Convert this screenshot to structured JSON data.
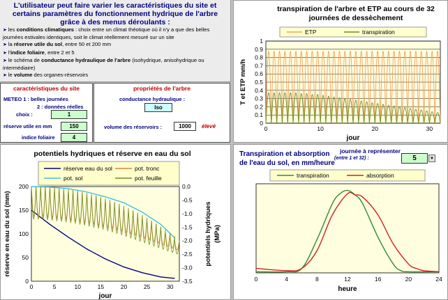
{
  "intro": {
    "title": "L'utilisateur peut faire varier les caractéristiques du site et certains  paramètres du fonctionnement hydrique de l'arbre grâce à des menus déroulants :",
    "items": [
      [
        "les ",
        "conditions climatiques",
        " : choix entre un climat théotique où il n'y a que des belles journées estivales identiques, soit le climat réellement mesuré sur un site"
      ],
      [
        "la ",
        "réserve utile du sol",
        ", entre 50 et 200 mm"
      ],
      [
        "l'",
        "indice foliaire",
        ", entre 2 et 5"
      ],
      [
        "le schéma de ",
        "conductance hydraulique de l'arbre",
        " (isohydrique, anisohydrique ou intermédiaire)"
      ],
      [
        " le ",
        "volume",
        " des organes-réservoirs"
      ]
    ]
  },
  "site": {
    "title": "caractéristiques du site",
    "meteo_line1": "METEO  1 : belles journées",
    "meteo_line2": "2 : données réelles",
    "choix_label": "choix :",
    "choix_value": "1",
    "reserve_label": "réserve utile en mm",
    "reserve_value": "150",
    "indice_label": "indice foliaire",
    "indice_value": "4"
  },
  "tree": {
    "title": "propriétés de l'arbre",
    "conductance_label": "conductance hydraulique :",
    "conductance_value": "Iso",
    "volume_label": "volume des réservoirs :",
    "volume_value": "1000",
    "volume_note": "élevé"
  },
  "chart_data": [
    {
      "type": "line",
      "title": "transpiration de l'arbre et ETP au cours de 32 journées de dessèchement",
      "xlabel": "jour",
      "ylabel": "T et ETP mm/h",
      "xlim": [
        0,
        32
      ],
      "ylim": [
        0,
        1
      ],
      "xticks": [
        0,
        10,
        20,
        30
      ],
      "yticks": [
        0,
        0.1,
        0.2,
        0.3,
        0.4,
        0.5,
        0.6,
        0.7,
        0.8,
        0.9,
        1
      ],
      "ytick_labels": [
        "0",
        "0.1",
        "0.2",
        "0.3",
        "0.4",
        "0.5",
        "0.6",
        "0.7",
        "0.8",
        "0.9",
        "1"
      ],
      "legend_position": "top",
      "series": [
        {
          "name": "ETP",
          "color": "#f0a060",
          "daily_peak": [
            0.88,
            0.88,
            0.88,
            0.88,
            0.88,
            0.88,
            0.88,
            0.88,
            0.88,
            0.88,
            0.88,
            0.88,
            0.88,
            0.88,
            0.88,
            0.88,
            0.88,
            0.88,
            0.88,
            0.88,
            0.88,
            0.88,
            0.88,
            0.88,
            0.88,
            0.88,
            0.88,
            0.88,
            0.88,
            0.88,
            0.88,
            0.88
          ]
        },
        {
          "name": "transpiration",
          "color": "#6b8e23",
          "daily_peak": [
            0.37,
            0.37,
            0.37,
            0.37,
            0.37,
            0.37,
            0.36,
            0.36,
            0.35,
            0.35,
            0.34,
            0.33,
            0.32,
            0.31,
            0.3,
            0.29,
            0.28,
            0.27,
            0.26,
            0.25,
            0.24,
            0.23,
            0.22,
            0.21,
            0.2,
            0.19,
            0.18,
            0.17,
            0.16,
            0.15,
            0.14,
            0.13
          ]
        }
      ]
    },
    {
      "type": "line",
      "title": "potentiels hydriques et réserve en eau du sol",
      "xlabel": "jour",
      "ylabel": "réserve en eau du sol (mm)",
      "y2label": "potentiels hydriques (MPa)",
      "xlim": [
        0,
        32
      ],
      "ylim": [
        0,
        200
      ],
      "y2lim": [
        -3.5,
        0
      ],
      "xticks": [
        0,
        5,
        10,
        15,
        20,
        25,
        30
      ],
      "yticks": [
        0,
        50,
        100,
        150,
        200
      ],
      "y2ticks": [
        0,
        -0.5,
        -1,
        -1.5,
        -2,
        -2.5,
        -3,
        -3.5
      ],
      "y2tick_labels": [
        "0.0",
        "-0.5",
        "-1.0",
        "-1.5",
        "-2.0",
        "-2.5",
        "-3.0",
        "-3.5"
      ],
      "legend_position": "top",
      "series": [
        {
          "name": "réserve eau du sol",
          "color": "#000080",
          "axis": "left",
          "x": [
            0,
            4,
            8,
            12,
            16,
            20,
            24,
            28,
            31
          ],
          "values": [
            150,
            120,
            93,
            68,
            47,
            30,
            18,
            9,
            6
          ]
        },
        {
          "name": "pot. tronc",
          "color": "#e08040",
          "axis": "right",
          "daily_max": [
            0,
            0,
            0,
            -0.02,
            -0.04,
            -0.06,
            -0.08,
            -0.1,
            -0.13,
            -0.16,
            -0.2,
            -0.24,
            -0.28,
            -0.33,
            -0.38,
            -0.44,
            -0.5,
            -0.57,
            -0.64,
            -0.72,
            -0.8,
            -0.88,
            -0.97,
            -1.06,
            -1.16,
            -1.26,
            -1.37,
            -1.48,
            -1.6,
            -1.72,
            -1.85,
            -2.0
          ],
          "daily_min": [
            -1.1,
            -1.1,
            -1.1,
            -1.12,
            -1.14,
            -1.16,
            -1.18,
            -1.2,
            -1.23,
            -1.26,
            -1.29,
            -1.32,
            -1.35,
            -1.39,
            -1.43,
            -1.47,
            -1.51,
            -1.55,
            -1.6,
            -1.65,
            -1.7,
            -1.75,
            -1.8,
            -1.86,
            -1.92,
            -1.98,
            -2.04,
            -2.1,
            -2.16,
            -2.22,
            -2.28,
            -2.35
          ]
        },
        {
          "name": "pot. sol",
          "color": "#40c0e0",
          "axis": "right",
          "x": [
            0,
            4,
            8,
            12,
            16,
            20,
            24,
            28,
            31
          ],
          "values": [
            0,
            -0.02,
            -0.08,
            -0.2,
            -0.38,
            -0.6,
            -0.95,
            -1.4,
            -1.9
          ]
        },
        {
          "name": "pot. feuille",
          "color": "#6b8e23",
          "axis": "right",
          "daily_max": [
            0,
            0,
            0,
            -0.02,
            -0.04,
            -0.06,
            -0.08,
            -0.1,
            -0.13,
            -0.16,
            -0.2,
            -0.24,
            -0.28,
            -0.33,
            -0.38,
            -0.44,
            -0.5,
            -0.57,
            -0.64,
            -0.72,
            -0.8,
            -0.88,
            -0.97,
            -1.06,
            -1.16,
            -1.26,
            -1.37,
            -1.48,
            -1.6,
            -1.72,
            -1.85,
            -2.0
          ],
          "daily_min": [
            -1.2,
            -1.2,
            -1.2,
            -1.22,
            -1.24,
            -1.26,
            -1.28,
            -1.3,
            -1.33,
            -1.36,
            -1.39,
            -1.42,
            -1.46,
            -1.5,
            -1.54,
            -1.58,
            -1.63,
            -1.68,
            -1.73,
            -1.78,
            -1.84,
            -1.9,
            -1.96,
            -2.02,
            -2.08,
            -2.14,
            -2.2,
            -2.26,
            -2.32,
            -2.38,
            -2.44,
            -2.5
          ]
        }
      ]
    },
    {
      "type": "line",
      "title": "Transpiration et absorption de l'eau du sol, en mm/heure",
      "xlabel": "heure",
      "ylabel": "",
      "xlim": [
        0,
        24
      ],
      "ylim": [
        0,
        0.4
      ],
      "xticks": [
        0,
        4,
        8,
        12,
        16,
        20,
        24
      ],
      "legend_position": "top",
      "series": [
        {
          "name": "transpiration",
          "color": "#2e8b2e",
          "x": [
            0,
            4,
            6,
            8,
            10,
            11,
            12,
            13,
            14,
            16,
            18,
            19,
            20,
            24
          ],
          "values": [
            0.005,
            0.005,
            0.02,
            0.15,
            0.31,
            0.355,
            0.37,
            0.35,
            0.31,
            0.16,
            0.04,
            0.01,
            0.005,
            0.005
          ]
        },
        {
          "name": "absorption",
          "color": "#d02020",
          "x": [
            0,
            4,
            6,
            8,
            10,
            12,
            13,
            14,
            16,
            18,
            20,
            21,
            22,
            24
          ],
          "values": [
            0.02,
            0.01,
            0.02,
            0.1,
            0.26,
            0.355,
            0.35,
            0.34,
            0.26,
            0.13,
            0.04,
            0.02,
            0.01,
            0.005
          ]
        }
      ]
    }
  ],
  "day_selector": {
    "label": "journée à représenter",
    "hint": "(entre 1 et 32) :",
    "value": "5"
  }
}
